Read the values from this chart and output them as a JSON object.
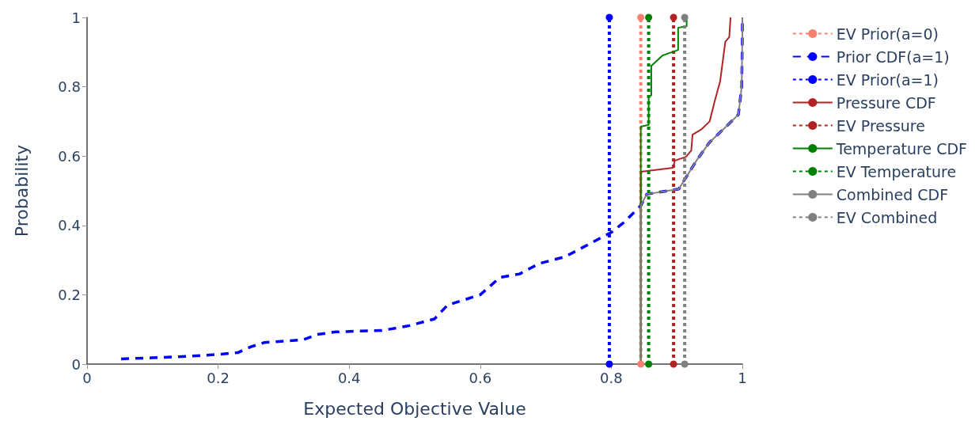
{
  "chart_data": {
    "type": "line",
    "xlabel": "Expected Objective Value",
    "ylabel": "Probability",
    "xlim": [
      0,
      1
    ],
    "xticks": [
      0,
      0.2,
      0.4,
      0.6,
      0.8,
      1
    ],
    "ylim": [
      0,
      1
    ],
    "yticks": [
      0,
      0.2,
      0.4,
      0.6,
      0.8,
      1
    ],
    "grid": false,
    "legend": "right",
    "series": [
      {
        "name": "EV Prior(a=0)",
        "color": "#fa8072",
        "line_style": "dotted",
        "marker": "circle",
        "x": [
          0.845,
          0.845
        ],
        "values": [
          0,
          1
        ]
      },
      {
        "name": "Prior CDF(a=1)",
        "color": "#0000ff",
        "line_style": "dashed",
        "marker": "none",
        "x": [
          0.052,
          0.1,
          0.15,
          0.2,
          0.23,
          0.25,
          0.27,
          0.3,
          0.33,
          0.35,
          0.38,
          0.45,
          0.49,
          0.53,
          0.55,
          0.6,
          0.63,
          0.66,
          0.69,
          0.73,
          0.75,
          0.78,
          0.8,
          0.82,
          0.845,
          0.854,
          0.903,
          0.93,
          0.95,
          0.978,
          0.994,
          0.999,
          1.0,
          1.0
        ],
        "values": [
          0.015,
          0.018,
          0.022,
          0.028,
          0.033,
          0.05,
          0.062,
          0.066,
          0.07,
          0.085,
          0.093,
          0.097,
          0.11,
          0.13,
          0.17,
          0.2,
          0.25,
          0.26,
          0.29,
          0.31,
          0.33,
          0.36,
          0.38,
          0.41,
          0.457,
          0.49,
          0.505,
          0.587,
          0.64,
          0.69,
          0.72,
          0.8,
          0.95,
          1.0
        ]
      },
      {
        "name": "EV Prior(a=1)",
        "color": "#0000ff",
        "line_style": "dotted",
        "marker": "circle",
        "x": [
          0.797,
          0.797
        ],
        "values": [
          0,
          1
        ]
      },
      {
        "name": "Pressure CDF",
        "color": "#b22222",
        "line_style": "solid",
        "marker": "none",
        "x": [
          0.845,
          0.845,
          0.894,
          0.897,
          0.914,
          0.922,
          0.924,
          0.938,
          0.95,
          0.958,
          0.966,
          0.974,
          0.98,
          0.982
        ],
        "values": [
          0,
          0.555,
          0.566,
          0.587,
          0.598,
          0.616,
          0.662,
          0.678,
          0.7,
          0.76,
          0.815,
          0.93,
          0.943,
          1.0
        ]
      },
      {
        "name": "EV Pressure",
        "color": "#b22222",
        "line_style": "dotted",
        "marker": "circle",
        "x": [
          0.895,
          0.895
        ],
        "values": [
          0,
          1
        ]
      },
      {
        "name": "Temperature CDF",
        "color": "#008000",
        "line_style": "solid",
        "marker": "none",
        "x": [
          0.845,
          0.845,
          0.857,
          0.857,
          0.861,
          0.861,
          0.878,
          0.902,
          0.902,
          0.915,
          0.915
        ],
        "values": [
          0,
          0.685,
          0.69,
          0.772,
          0.775,
          0.86,
          0.89,
          0.906,
          0.97,
          0.975,
          1.0
        ]
      },
      {
        "name": "EV Temperature",
        "color": "#008000",
        "line_style": "dotted",
        "marker": "circle",
        "x": [
          0.857,
          0.857
        ],
        "values": [
          0,
          1
        ]
      },
      {
        "name": "Combined CDF",
        "color": "#808080",
        "line_style": "solid",
        "marker": "none",
        "x": [
          0.845,
          0.845,
          0.854,
          0.903,
          0.93,
          0.95,
          0.978,
          0.994,
          0.999,
          1.0,
          1.0
        ],
        "values": [
          0,
          0.457,
          0.49,
          0.505,
          0.587,
          0.64,
          0.69,
          0.72,
          0.8,
          0.95,
          1.0
        ]
      },
      {
        "name": "EV Combined",
        "color": "#808080",
        "line_style": "dotted",
        "marker": "circle",
        "x": [
          0.912,
          0.912
        ],
        "values": [
          0,
          1
        ]
      }
    ]
  }
}
